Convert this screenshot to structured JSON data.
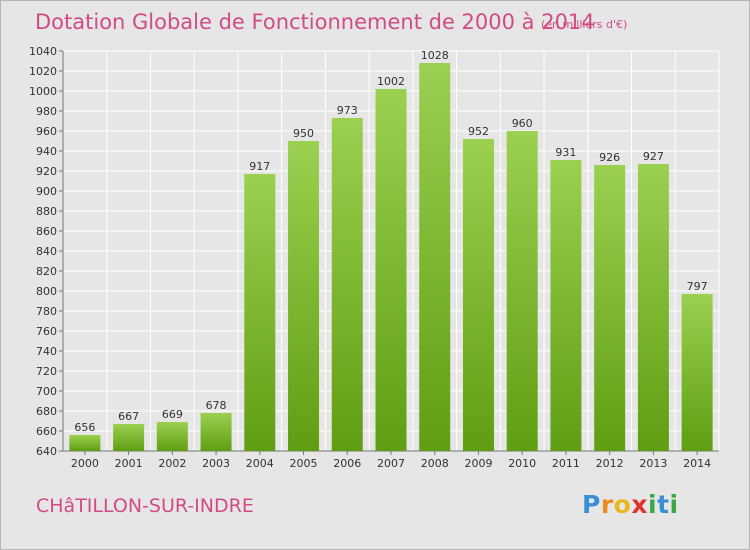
{
  "header": {
    "title": "Dotation Globale de Fonctionnement de 2000 à 2014",
    "subtitle": "(en milliers d'€)"
  },
  "footer": {
    "commune": "CHâTILLON-SUR-INDRE",
    "logo_text": "Proxiti"
  },
  "colors": {
    "title": "#d14b85",
    "bar_top": "#9bd050",
    "bar_bottom": "#5f9e12",
    "background": "#e6e6e6",
    "grid": "#ffffff"
  },
  "chart_data": {
    "type": "bar",
    "categories": [
      "2000",
      "2001",
      "2002",
      "2003",
      "2004",
      "2005",
      "2006",
      "2007",
      "2008",
      "2009",
      "2010",
      "2011",
      "2012",
      "2013",
      "2014"
    ],
    "values": [
      656,
      667,
      669,
      678,
      917,
      950,
      973,
      1002,
      1028,
      952,
      960,
      931,
      926,
      927,
      797
    ],
    "data_labels": [
      "656",
      "667",
      "669",
      "678",
      "917",
      "950",
      "973",
      "1002",
      "1028",
      "952",
      "960",
      "931",
      "926",
      "927",
      "797"
    ],
    "ylim": [
      640,
      1040
    ],
    "yticks": [
      640,
      660,
      680,
      700,
      720,
      740,
      760,
      780,
      800,
      820,
      840,
      860,
      880,
      900,
      920,
      940,
      960,
      980,
      1000,
      1020,
      1040
    ],
    "grid": true,
    "title": "Dotation Globale de Fonctionnement de 2000 à 2014",
    "xlabel": "",
    "ylabel": ""
  }
}
